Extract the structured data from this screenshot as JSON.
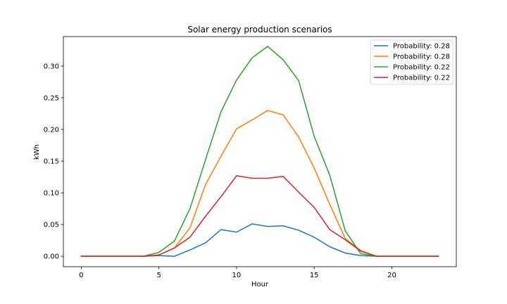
{
  "chart_data": {
    "type": "line",
    "title": "Solar energy production scenarios",
    "xlabel": "Hour",
    "ylabel": "kWh",
    "xlim": [
      -1.15,
      24.15
    ],
    "ylim": [
      -0.0165,
      0.3465
    ],
    "xticks": [
      0,
      5,
      10,
      15,
      20
    ],
    "xtick_labels": [
      "0",
      "5",
      "10",
      "15",
      "20"
    ],
    "yticks": [
      0.0,
      0.05,
      0.1,
      0.15,
      0.2,
      0.25,
      0.3
    ],
    "ytick_labels": [
      "0.00",
      "0.05",
      "0.10",
      "0.15",
      "0.20",
      "0.25",
      "0.30"
    ],
    "grid": false,
    "legend_position": "top-right",
    "x": [
      0,
      1,
      2,
      3,
      4,
      5,
      6,
      7,
      8,
      9,
      10,
      11,
      12,
      13,
      14,
      15,
      16,
      17,
      18,
      19,
      20,
      21,
      22,
      23
    ],
    "series": [
      {
        "name": "Probability: 0.28",
        "color": "#1f77b4",
        "values": [
          0,
          0,
          0,
          0,
          0,
          0.001,
          0.0,
          0.01,
          0.021,
          0.042,
          0.038,
          0.051,
          0.047,
          0.048,
          0.041,
          0.03,
          0.015,
          0.005,
          0.001,
          0,
          0,
          0,
          0,
          0
        ]
      },
      {
        "name": "Probability: 0.28",
        "color": "#ff7f0e",
        "values": [
          0,
          0,
          0,
          0,
          0,
          0.002,
          0.013,
          0.045,
          0.113,
          0.158,
          0.201,
          0.215,
          0.23,
          0.223,
          0.188,
          0.139,
          0.082,
          0.028,
          0.009,
          0,
          0,
          0,
          0,
          0
        ]
      },
      {
        "name": "Probability: 0.22",
        "color": "#2ca02c",
        "values": [
          0,
          0,
          0,
          0,
          0,
          0.006,
          0.024,
          0.075,
          0.152,
          0.228,
          0.278,
          0.313,
          0.331,
          0.31,
          0.277,
          0.189,
          0.128,
          0.04,
          0.004,
          0,
          0,
          0,
          0,
          0
        ]
      },
      {
        "name": "Probability: 0.22",
        "color": "#d62728",
        "values": [
          0,
          0,
          0,
          0,
          0,
          0.002,
          0.013,
          0.03,
          0.063,
          0.094,
          0.127,
          0.123,
          0.123,
          0.126,
          0.101,
          0.077,
          0.042,
          0.026,
          0.008,
          0,
          0,
          0,
          0,
          0
        ]
      }
    ]
  }
}
